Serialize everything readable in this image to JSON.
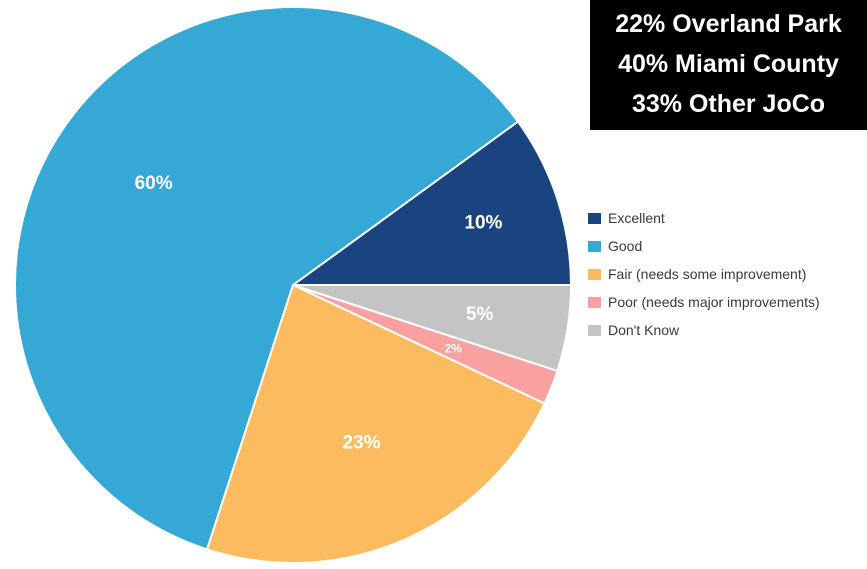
{
  "chart_data": {
    "type": "pie",
    "title": "",
    "categories": [
      "Excellent",
      "Good",
      "Fair (needs some improvement)",
      "Poor (needs major improvements)",
      "Don't Know"
    ],
    "values": [
      10,
      60,
      23,
      2,
      5
    ],
    "data_labels": [
      "10%",
      "60%",
      "23%",
      "2%",
      "5%"
    ],
    "colors": [
      "#1a4480",
      "#35a8d5",
      "#fcbb5e",
      "#f9a0a0",
      "#c4c4c4"
    ],
    "label_colors": [
      "#ffffff",
      "#ffffff",
      "#ffffff",
      "#ffffff",
      "#ffffff"
    ],
    "legend_position": "right",
    "start_category": "Excellent",
    "direction": "counterclockwise from 3 o'clock"
  },
  "callout": {
    "lines": [
      "22% Overland Park",
      "40% Miami County",
      "33% Other JoCo"
    ]
  }
}
